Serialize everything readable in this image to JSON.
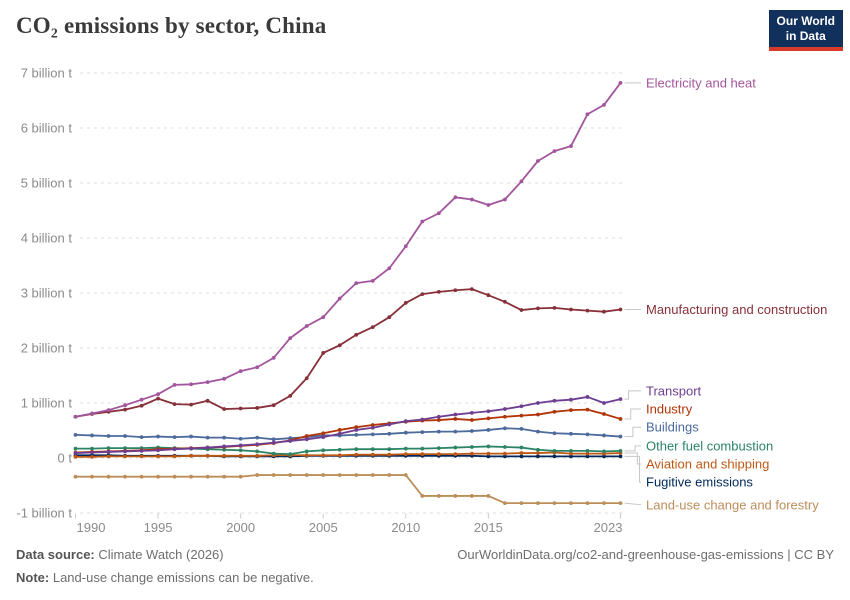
{
  "header": {
    "title": "CO₂ emissions by sector, China",
    "logo_line1": "Our World",
    "logo_line2": "in Data",
    "logo_bg": "#12305C",
    "logo_accent": "#D93A2B"
  },
  "footer": {
    "source_label": "Data source:",
    "source_text": "Climate Watch (2026)",
    "note_label": "Note:",
    "note_text": "Land-use change emissions can be negative.",
    "url_text": "OurWorldinData.org/co2-and-greenhouse-gas-emissions | CC BY"
  },
  "chart_data": {
    "type": "line",
    "title": "CO₂ emissions by sector, China",
    "unit": "billion t",
    "x_start": 1990,
    "x_end": 2023,
    "ylim": [
      -1,
      7
    ],
    "grid": "horizontal-dashed",
    "legend_position": "right-end-labels",
    "axis_text_color": "#8b8b8b",
    "gridline_color": "#dddddd",
    "connector_color": "#c8c8c8",
    "y_tick_values": [
      -1,
      0,
      1,
      2,
      3,
      4,
      5,
      6,
      7
    ],
    "y_tick_labels": [
      "-1 billion t",
      "0 t",
      "1 billion t",
      "2 billion t",
      "3 billion t",
      "4 billion t",
      "5 billion t",
      "6 billion t",
      "7 billion t"
    ],
    "x_tick_values": [
      1990,
      1995,
      2000,
      2005,
      2010,
      2015,
      2023
    ],
    "x_tick_labels": [
      "1990",
      "1995",
      "2000",
      "2005",
      "2010",
      "2015",
      "2023"
    ],
    "series": [
      {
        "name": "Electricity and heat",
        "color": "#A2559C",
        "label_y_value": 6.82,
        "values": [
          0.75,
          0.81,
          0.87,
          0.96,
          1.06,
          1.16,
          1.33,
          1.34,
          1.38,
          1.44,
          1.58,
          1.65,
          1.82,
          2.18,
          2.4,
          2.56,
          2.9,
          3.18,
          3.22,
          3.45,
          3.85,
          4.3,
          4.45,
          4.74,
          4.7,
          4.6,
          4.7,
          5.03,
          5.4,
          5.58,
          5.67,
          6.25,
          6.42,
          6.82
        ]
      },
      {
        "name": "Manufacturing and construction",
        "color": "#883039",
        "label_y_value": 2.7,
        "values": [
          0.75,
          0.8,
          0.84,
          0.88,
          0.95,
          1.08,
          0.98,
          0.97,
          1.04,
          0.89,
          0.9,
          0.91,
          0.96,
          1.13,
          1.45,
          1.91,
          2.05,
          2.24,
          2.38,
          2.56,
          2.82,
          2.98,
          3.02,
          3.05,
          3.07,
          2.96,
          2.84,
          2.69,
          2.72,
          2.73,
          2.7,
          2.68,
          2.66,
          2.7
        ]
      },
      {
        "name": "Transport",
        "color": "#6D3E91",
        "label_y_value": 1.22,
        "values": [
          0.09,
          0.1,
          0.11,
          0.12,
          0.13,
          0.14,
          0.16,
          0.17,
          0.19,
          0.21,
          0.23,
          0.25,
          0.28,
          0.31,
          0.34,
          0.38,
          0.44,
          0.51,
          0.55,
          0.61,
          0.67,
          0.7,
          0.75,
          0.79,
          0.82,
          0.85,
          0.89,
          0.94,
          1.0,
          1.04,
          1.06,
          1.11,
          1.0,
          1.07
        ]
      },
      {
        "name": "Industry",
        "color": "#B13507",
        "label_y_value": 0.89,
        "values": [
          0.1,
          0.11,
          0.12,
          0.13,
          0.14,
          0.16,
          0.17,
          0.18,
          0.19,
          0.2,
          0.22,
          0.24,
          0.27,
          0.32,
          0.4,
          0.45,
          0.51,
          0.56,
          0.6,
          0.63,
          0.66,
          0.68,
          0.69,
          0.71,
          0.69,
          0.72,
          0.75,
          0.77,
          0.79,
          0.84,
          0.87,
          0.88,
          0.8,
          0.71
        ]
      },
      {
        "name": "Buildings",
        "color": "#4C6A9C",
        "label_y_value": 0.56,
        "values": [
          0.42,
          0.41,
          0.4,
          0.4,
          0.38,
          0.39,
          0.38,
          0.39,
          0.37,
          0.37,
          0.35,
          0.37,
          0.34,
          0.36,
          0.38,
          0.41,
          0.41,
          0.42,
          0.43,
          0.44,
          0.46,
          0.47,
          0.48,
          0.48,
          0.49,
          0.51,
          0.54,
          0.53,
          0.48,
          0.45,
          0.44,
          0.43,
          0.41,
          0.39
        ]
      },
      {
        "name": "Other fuel combustion",
        "color": "#2C8465",
        "label_y_value": 0.22,
        "values": [
          0.17,
          0.17,
          0.18,
          0.18,
          0.18,
          0.19,
          0.18,
          0.17,
          0.16,
          0.15,
          0.14,
          0.12,
          0.08,
          0.07,
          0.12,
          0.14,
          0.15,
          0.16,
          0.16,
          0.16,
          0.17,
          0.17,
          0.18,
          0.19,
          0.2,
          0.21,
          0.2,
          0.19,
          0.15,
          0.13,
          0.13,
          0.13,
          0.12,
          0.13
        ]
      },
      {
        "name": "Aviation and shipping",
        "color": "#BE5915",
        "label_y_value": -0.11,
        "values": [
          0.02,
          0.02,
          0.03,
          0.03,
          0.03,
          0.03,
          0.03,
          0.04,
          0.04,
          0.04,
          0.04,
          0.04,
          0.05,
          0.05,
          0.05,
          0.05,
          0.05,
          0.06,
          0.06,
          0.06,
          0.07,
          0.07,
          0.07,
          0.07,
          0.08,
          0.08,
          0.08,
          0.09,
          0.09,
          0.1,
          0.08,
          0.08,
          0.08,
          0.09
        ]
      },
      {
        "name": "Fugitive emissions",
        "color": "#00275B",
        "label_y_value": -0.44,
        "values": [
          0.05,
          0.05,
          0.05,
          0.04,
          0.04,
          0.04,
          0.04,
          0.04,
          0.04,
          0.03,
          0.03,
          0.03,
          0.03,
          0.03,
          0.04,
          0.04,
          0.04,
          0.04,
          0.04,
          0.04,
          0.04,
          0.04,
          0.04,
          0.04,
          0.04,
          0.03,
          0.03,
          0.03,
          0.03,
          0.03,
          0.03,
          0.03,
          0.03,
          0.03
        ]
      },
      {
        "name": "Land-use change and forestry",
        "color": "#BC8E5A",
        "label_y_value": -0.85,
        "values": [
          -0.34,
          -0.34,
          -0.34,
          -0.34,
          -0.34,
          -0.34,
          -0.34,
          -0.34,
          -0.34,
          -0.34,
          -0.34,
          -0.31,
          -0.31,
          -0.31,
          -0.31,
          -0.31,
          -0.31,
          -0.31,
          -0.31,
          -0.31,
          -0.31,
          -0.69,
          -0.69,
          -0.69,
          -0.69,
          -0.69,
          -0.82,
          -0.82,
          -0.82,
          -0.82,
          -0.82,
          -0.82,
          -0.82,
          -0.82
        ]
      }
    ]
  }
}
